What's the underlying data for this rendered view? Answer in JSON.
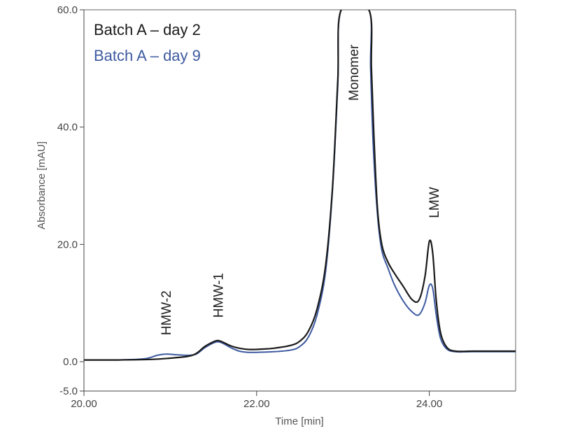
{
  "chart_data": {
    "type": "line",
    "title": "",
    "xlabel": "Time [min]",
    "ylabel": "Absorbance [mAU]",
    "xlim": [
      20.0,
      25.0
    ],
    "ylim": [
      -5.0,
      60.0
    ],
    "x_ticks": [
      20.0,
      22.0,
      24.0
    ],
    "x_tick_labels": [
      "20.00",
      "22.00",
      "24.00"
    ],
    "y_ticks": [
      60.0,
      40.0,
      20.0,
      0.0,
      -5.0
    ],
    "y_tick_labels": [
      "60.0",
      "40.0",
      "20.0",
      "0.0",
      "-5.0"
    ],
    "grid": false,
    "legend": "top-left",
    "series": [
      {
        "name": "Batch A – day 2",
        "color": "#1a1a1a",
        "points": [
          [
            20.0,
            0.3
          ],
          [
            20.4,
            0.3
          ],
          [
            20.8,
            0.4
          ],
          [
            21.0,
            0.6
          ],
          [
            21.2,
            0.9
          ],
          [
            21.3,
            1.4
          ],
          [
            21.4,
            2.6
          ],
          [
            21.5,
            3.4
          ],
          [
            21.55,
            3.6
          ],
          [
            21.6,
            3.4
          ],
          [
            21.7,
            2.7
          ],
          [
            21.8,
            2.3
          ],
          [
            21.9,
            2.1
          ],
          [
            22.0,
            2.1
          ],
          [
            22.2,
            2.3
          ],
          [
            22.4,
            2.8
          ],
          [
            22.5,
            3.5
          ],
          [
            22.6,
            5.2
          ],
          [
            22.7,
            9.0
          ],
          [
            22.8,
            16.5
          ],
          [
            22.88,
            30.0
          ],
          [
            22.94,
            48.0
          ],
          [
            22.98,
            60.0
          ],
          [
            23.3,
            60.0
          ],
          [
            23.33,
            50.0
          ],
          [
            23.36,
            38.0
          ],
          [
            23.4,
            26.0
          ],
          [
            23.45,
            20.0
          ],
          [
            23.52,
            17.0
          ],
          [
            23.6,
            15.0
          ],
          [
            23.7,
            12.8
          ],
          [
            23.8,
            10.6
          ],
          [
            23.88,
            10.5
          ],
          [
            23.95,
            14.5
          ],
          [
            24.0,
            20.5
          ],
          [
            24.04,
            18.5
          ],
          [
            24.08,
            10.5
          ],
          [
            24.13,
            5.0
          ],
          [
            24.2,
            2.5
          ],
          [
            24.3,
            1.8
          ],
          [
            24.5,
            1.8
          ],
          [
            25.0,
            1.8
          ]
        ]
      },
      {
        "name": "Batch A – day 9",
        "color": "#3d5aa0",
        "points": [
          [
            20.0,
            0.3
          ],
          [
            20.4,
            0.3
          ],
          [
            20.7,
            0.5
          ],
          [
            20.85,
            1.1
          ],
          [
            20.95,
            1.3
          ],
          [
            21.05,
            1.2
          ],
          [
            21.2,
            1.1
          ],
          [
            21.3,
            1.3
          ],
          [
            21.4,
            2.4
          ],
          [
            21.5,
            3.2
          ],
          [
            21.55,
            3.4
          ],
          [
            21.6,
            3.2
          ],
          [
            21.7,
            2.4
          ],
          [
            21.8,
            1.8
          ],
          [
            21.9,
            1.6
          ],
          [
            22.0,
            1.6
          ],
          [
            22.2,
            1.7
          ],
          [
            22.4,
            2.0
          ],
          [
            22.5,
            2.6
          ],
          [
            22.6,
            4.2
          ],
          [
            22.7,
            8.0
          ],
          [
            22.8,
            15.5
          ],
          [
            22.88,
            29.5
          ],
          [
            22.94,
            47.0
          ],
          [
            22.98,
            60.0
          ],
          [
            23.3,
            60.0
          ],
          [
            23.32,
            50.0
          ],
          [
            23.35,
            37.0
          ],
          [
            23.4,
            25.0
          ],
          [
            23.45,
            19.0
          ],
          [
            23.52,
            16.0
          ],
          [
            23.6,
            13.0
          ],
          [
            23.7,
            10.3
          ],
          [
            23.8,
            8.5
          ],
          [
            23.88,
            8.0
          ],
          [
            23.95,
            10.0
          ],
          [
            24.0,
            13.0
          ],
          [
            24.04,
            12.5
          ],
          [
            24.08,
            8.0
          ],
          [
            24.13,
            4.0
          ],
          [
            24.2,
            2.2
          ],
          [
            24.3,
            1.7
          ],
          [
            24.5,
            1.7
          ],
          [
            25.0,
            1.7
          ]
        ]
      }
    ],
    "annotations": [
      {
        "text": "HMW-2",
        "x": 20.95,
        "y": 4.5
      },
      {
        "text": "HMW-1",
        "x": 21.55,
        "y": 7.5
      },
      {
        "text": "Monomer",
        "x": 23.12,
        "y": 44.5
      },
      {
        "text": "LMW",
        "x": 24.05,
        "y": 24.5
      }
    ]
  }
}
